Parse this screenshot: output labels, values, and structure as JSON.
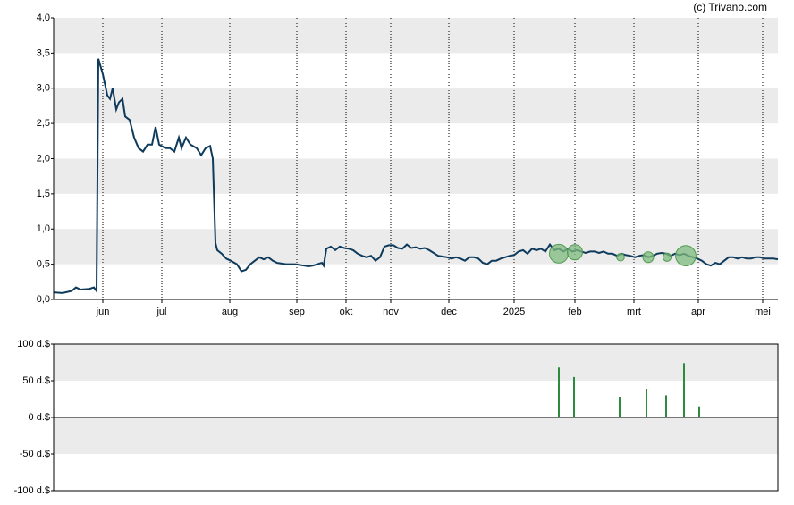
{
  "chart_data": [
    {
      "type": "line",
      "source": "(c) Trivano.com",
      "color": "#0e3a5c",
      "x": [
        0,
        10,
        20,
        25,
        30,
        40,
        45,
        48,
        50,
        55,
        60,
        63,
        66,
        70,
        73,
        77,
        80,
        85,
        90,
        95,
        100,
        105,
        110,
        114,
        118,
        125,
        130,
        135,
        140,
        143,
        148,
        153,
        160,
        165,
        170,
        175,
        178,
        181,
        183,
        188,
        193,
        198,
        205,
        210,
        215,
        220,
        225,
        230,
        235,
        240,
        245,
        250,
        260,
        270,
        280,
        285,
        290,
        295,
        300,
        302,
        305,
        310,
        315,
        320,
        325,
        330,
        335,
        340,
        345,
        350,
        355,
        360,
        365,
        370,
        375,
        380,
        385,
        390,
        395,
        400,
        405,
        410,
        415,
        420,
        425,
        430,
        435,
        440,
        445,
        450,
        455,
        460,
        465,
        470,
        475,
        480,
        485,
        490,
        495,
        500,
        505,
        510,
        515,
        520,
        525,
        530,
        535,
        540,
        545,
        550,
        555,
        560,
        565,
        570,
        575,
        580,
        585,
        590,
        595,
        600,
        605,
        610,
        615,
        620,
        625,
        630,
        635,
        640,
        645,
        650,
        655,
        660,
        665,
        670,
        675,
        680,
        685,
        690,
        695,
        700,
        705,
        710,
        715,
        720,
        725,
        730,
        735,
        740,
        745,
        750,
        755,
        760,
        765,
        770,
        775,
        780,
        785,
        790,
        795,
        800,
        805,
        810
      ],
      "values": [
        0.1,
        0.09,
        0.12,
        0.17,
        0.14,
        0.15,
        0.17,
        0.12,
        3.42,
        3.2,
        2.9,
        2.85,
        3.0,
        2.7,
        2.8,
        2.85,
        2.6,
        2.55,
        2.3,
        2.15,
        2.1,
        2.2,
        2.2,
        2.45,
        2.2,
        2.15,
        2.15,
        2.1,
        2.3,
        2.15,
        2.3,
        2.2,
        2.15,
        2.05,
        2.15,
        2.18,
        2.0,
        0.8,
        0.7,
        0.65,
        0.58,
        0.55,
        0.5,
        0.4,
        0.42,
        0.5,
        0.55,
        0.6,
        0.57,
        0.6,
        0.55,
        0.52,
        0.5,
        0.5,
        0.48,
        0.47,
        0.48,
        0.5,
        0.52,
        0.48,
        0.72,
        0.75,
        0.7,
        0.75,
        0.73,
        0.72,
        0.7,
        0.65,
        0.62,
        0.6,
        0.62,
        0.55,
        0.6,
        0.75,
        0.77,
        0.77,
        0.73,
        0.72,
        0.78,
        0.73,
        0.74,
        0.72,
        0.73,
        0.7,
        0.66,
        0.62,
        0.61,
        0.6,
        0.58,
        0.6,
        0.58,
        0.55,
        0.6,
        0.6,
        0.58,
        0.52,
        0.5,
        0.55,
        0.55,
        0.58,
        0.6,
        0.62,
        0.63,
        0.68,
        0.7,
        0.65,
        0.72,
        0.7,
        0.72,
        0.68,
        0.78,
        0.7,
        0.72,
        0.68,
        0.72,
        0.68,
        0.7,
        0.68,
        0.66,
        0.68,
        0.68,
        0.66,
        0.68,
        0.65,
        0.65,
        0.62,
        0.65,
        0.63,
        0.62,
        0.6,
        0.62,
        0.63,
        0.6,
        0.62,
        0.65,
        0.66,
        0.65,
        0.62,
        0.65,
        0.63,
        0.65,
        0.62,
        0.6,
        0.58,
        0.55,
        0.5,
        0.48,
        0.52,
        0.5,
        0.55,
        0.6,
        0.6,
        0.58,
        0.6,
        0.58,
        0.58,
        0.6,
        0.6,
        0.58,
        0.58,
        0.58,
        0.57
      ],
      "bubbles": {
        "x": [
          565,
          583,
          634,
          665,
          686,
          707
        ],
        "values": [
          0.65,
          0.67,
          0.6,
          0.6,
          0.6,
          0.62
        ],
        "sizes": [
          68,
          55,
          28,
          39,
          30,
          74
        ],
        "color": "#7dbb7d"
      },
      "xlim": [
        0,
        810
      ],
      "xticks": [
        {
          "value": 55,
          "label": "jun"
        },
        {
          "value": 121,
          "label": "jul"
        },
        {
          "value": 197,
          "label": "aug"
        },
        {
          "value": 272,
          "label": "sep"
        },
        {
          "value": 327,
          "label": "okt"
        },
        {
          "value": 377,
          "label": "nov"
        },
        {
          "value": 442,
          "label": "dec"
        },
        {
          "value": 515,
          "label": "2025"
        },
        {
          "value": 583,
          "label": "feb"
        },
        {
          "value": 649,
          "label": "mrt"
        },
        {
          "value": 721,
          "label": "apr"
        },
        {
          "value": 793,
          "label": "mei"
        }
      ],
      "ylim": [
        0,
        4
      ],
      "yticks": [
        {
          "value": 0,
          "label": "0,0"
        },
        {
          "value": 0.5,
          "label": "0,5"
        },
        {
          "value": 1,
          "label": "1,0"
        },
        {
          "value": 1.5,
          "label": "1,5"
        },
        {
          "value": 2,
          "label": "2,0"
        },
        {
          "value": 2.5,
          "label": "2,5"
        },
        {
          "value": 3,
          "label": "3,0"
        },
        {
          "value": 3.5,
          "label": "3,5"
        },
        {
          "value": 4,
          "label": "4,0"
        }
      ]
    },
    {
      "type": "bar",
      "color": "#2e8b3e",
      "x": [
        565,
        582,
        633,
        663,
        685,
        705,
        722
      ],
      "values": [
        68,
        55,
        28,
        39,
        30,
        74,
        15
      ],
      "xlim": [
        0,
        810
      ],
      "ylim": [
        -100,
        100
      ],
      "yticks": [
        {
          "value": -100,
          "label": "-100 d.$"
        },
        {
          "value": -50,
          "label": "-50 d.$"
        },
        {
          "value": 0,
          "label": "0 d.$"
        },
        {
          "value": 50,
          "label": "50 d.$"
        },
        {
          "value": 100,
          "label": "100 d.$"
        }
      ]
    }
  ]
}
